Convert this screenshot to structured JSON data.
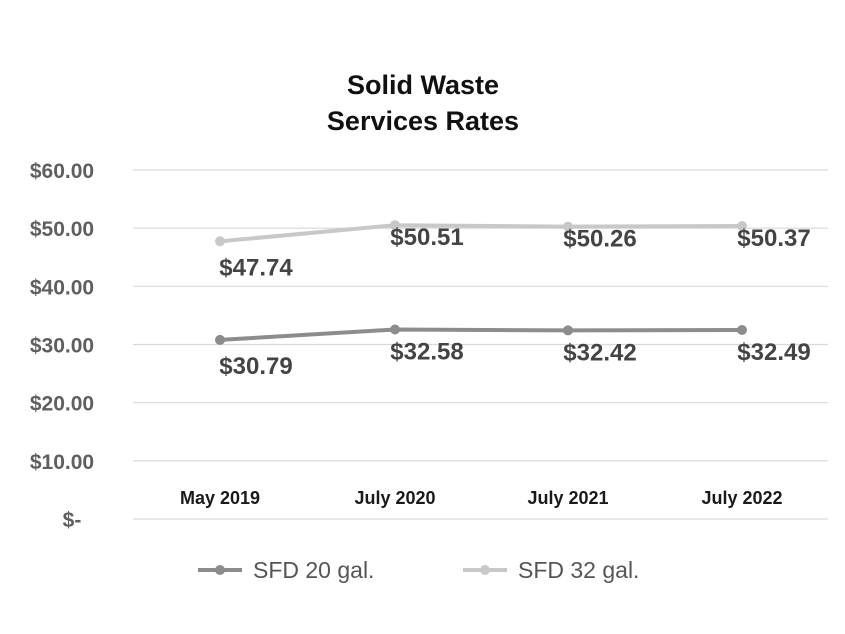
{
  "chart_data": {
    "type": "line",
    "title_lines": [
      "Solid Waste",
      "Services Rates"
    ],
    "categories": [
      "May 2019",
      "July 2020",
      "July 2021",
      "July 2022"
    ],
    "ylim": [
      0,
      60
    ],
    "yticks": [
      {
        "value": 60,
        "label": "$60.00"
      },
      {
        "value": 50,
        "label": "$50.00"
      },
      {
        "value": 40,
        "label": "$40.00"
      },
      {
        "value": 30,
        "label": "$30.00"
      },
      {
        "value": 20,
        "label": "$20.00"
      },
      {
        "value": 10,
        "label": "$10.00"
      },
      {
        "value": 0,
        "label": "$-"
      }
    ],
    "grid": true,
    "legend_position": "bottom",
    "series": [
      {
        "name": "SFD 20 gal.",
        "color": "#8c8c8c",
        "values": [
          30.79,
          32.58,
          32.42,
          32.49
        ],
        "labels": [
          "$30.79",
          "$32.58",
          "$32.42",
          "$32.49"
        ]
      },
      {
        "name": "SFD 32 gal.",
        "color": "#c8c8c8",
        "values": [
          47.74,
          50.51,
          50.26,
          50.37
        ],
        "labels": [
          "$47.74",
          "$50.51",
          "$50.26",
          "$50.37"
        ]
      }
    ]
  }
}
